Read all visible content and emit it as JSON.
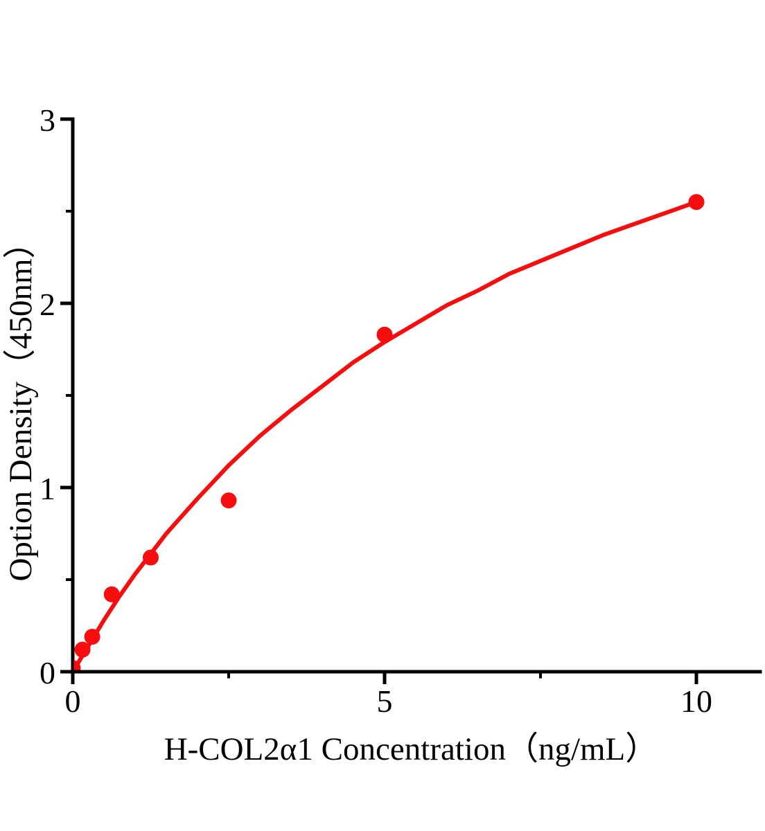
{
  "chart_data": {
    "type": "scatter",
    "title": "",
    "xlabel": "H-COL2α1 Concentration（ng/mL）",
    "ylabel": "Option Density（450nm）",
    "xlim": [
      0,
      11.05
    ],
    "ylim": [
      0,
      3
    ],
    "grid": false,
    "legend": false,
    "background": "#ffffff",
    "axis_color": "#000000",
    "point_color": "#f70d0d",
    "line_color": "#f70d0d",
    "x_axis": {
      "major_ticks": [
        {
          "value": 0,
          "label": "0"
        },
        {
          "value": 5,
          "label": "5"
        },
        {
          "value": 10,
          "label": "10"
        }
      ],
      "minor_ticks": [
        2.5,
        7.5
      ]
    },
    "y_axis": {
      "major_ticks": [
        {
          "value": 0,
          "label": "0"
        },
        {
          "value": 1,
          "label": "1"
        },
        {
          "value": 2,
          "label": "2"
        },
        {
          "value": 3,
          "label": "3"
        }
      ],
      "minor_ticks": [
        0.5,
        1.5,
        2.5
      ]
    },
    "points": [
      {
        "x": 0,
        "y": 0.02
      },
      {
        "x": 0.156,
        "y": 0.12
      },
      {
        "x": 0.3125,
        "y": 0.19
      },
      {
        "x": 0.625,
        "y": 0.42
      },
      {
        "x": 1.25,
        "y": 0.62
      },
      {
        "x": 2.5,
        "y": 0.93
      },
      {
        "x": 5,
        "y": 1.83
      },
      {
        "x": 10,
        "y": 2.55
      }
    ],
    "trend_line": {
      "points": [
        [
          0,
          0
        ],
        [
          0.25,
          0.14
        ],
        [
          0.5,
          0.28
        ],
        [
          0.75,
          0.41
        ],
        [
          1,
          0.53
        ],
        [
          1.5,
          0.75
        ],
        [
          2,
          0.94
        ],
        [
          2.5,
          1.12
        ],
        [
          3,
          1.28
        ],
        [
          3.5,
          1.42
        ],
        [
          4,
          1.55
        ],
        [
          4.5,
          1.68
        ],
        [
          5,
          1.79
        ],
        [
          5.5,
          1.89
        ],
        [
          6,
          1.99
        ],
        [
          6.5,
          2.07
        ],
        [
          7,
          2.16
        ],
        [
          7.5,
          2.23
        ],
        [
          8,
          2.3
        ],
        [
          8.5,
          2.37
        ],
        [
          9,
          2.43
        ],
        [
          9.5,
          2.49
        ],
        [
          10,
          2.55
        ]
      ]
    }
  }
}
